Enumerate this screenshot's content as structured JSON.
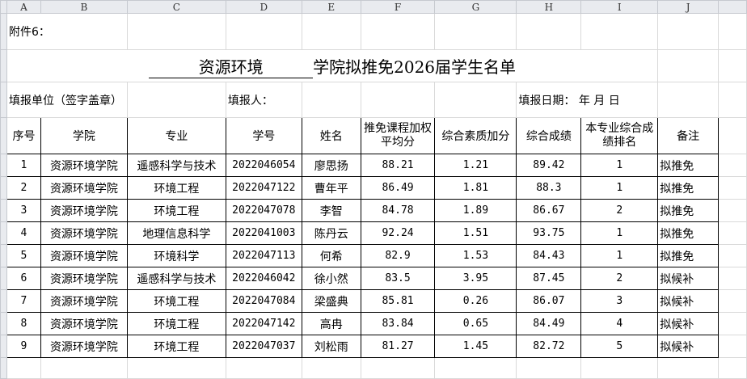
{
  "columns": [
    "A",
    "B",
    "C",
    "D",
    "E",
    "F",
    "G",
    "H",
    "I",
    "J"
  ],
  "attachment_label": "附件6：",
  "title": {
    "college": "资源环境",
    "rest": "学院拟推免2026届学生名单"
  },
  "info": {
    "unit": "填报单位（签字盖章）",
    "reporter": "填报人：",
    "date": "填报日期：   年  月 日"
  },
  "table": {
    "headers": [
      "序号",
      "学院",
      "专业",
      "学号",
      "姓名",
      "推免课程加权平均分",
      "综合素质加分",
      "综合成绩",
      "本专业综合成绩排名",
      "备注"
    ],
    "rows": [
      [
        "1",
        "资源环境学院",
        "遥感科学与技术",
        "2022046054",
        "廖思扬",
        "88.21",
        "1.21",
        "89.42",
        "1",
        "拟推免"
      ],
      [
        "2",
        "资源环境学院",
        "环境工程",
        "2022047122",
        "曹年平",
        "86.49",
        "1.81",
        "88.3",
        "1",
        "拟推免"
      ],
      [
        "3",
        "资源环境学院",
        "环境工程",
        "2022047078",
        "李智",
        "84.78",
        "1.89",
        "86.67",
        "2",
        "拟推免"
      ],
      [
        "4",
        "资源环境学院",
        "地理信息科学",
        "2022041003",
        "陈丹云",
        "92.24",
        "1.51",
        "93.75",
        "1",
        "拟推免"
      ],
      [
        "5",
        "资源环境学院",
        "环境科学",
        "2022047113",
        "何希",
        "82.9",
        "1.53",
        "84.43",
        "1",
        "拟推免"
      ],
      [
        "6",
        "资源环境学院",
        "遥感科学与技术",
        "2022046042",
        "徐小然",
        "83.5",
        "3.95",
        "87.45",
        "2",
        "拟候补"
      ],
      [
        "7",
        "资源环境学院",
        "环境工程",
        "2022047084",
        "梁盛典",
        "85.81",
        "0.26",
        "86.07",
        "3",
        "拟候补"
      ],
      [
        "8",
        "资源环境学院",
        "环境工程",
        "2022047142",
        "高冉",
        "83.84",
        "0.65",
        "84.49",
        "4",
        "拟候补"
      ],
      [
        "9",
        "资源环境学院",
        "环境工程",
        "2022047037",
        "刘松雨",
        "81.27",
        "1.45",
        "82.72",
        "5",
        "拟候补"
      ]
    ]
  }
}
